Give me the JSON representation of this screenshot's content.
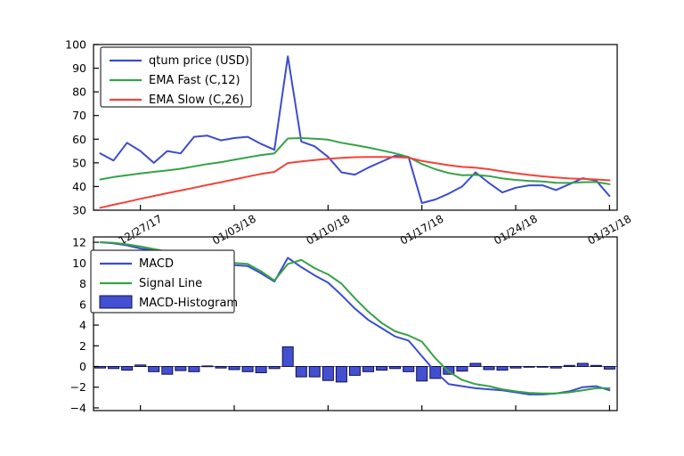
{
  "figure": {
    "background": "#ffffff",
    "axis_color": "#000000",
    "zero_line_color": "#777777"
  },
  "chart_data": [
    {
      "id": "price",
      "type": "line",
      "ylim": [
        30,
        100
      ],
      "yticks": [
        30,
        40,
        50,
        60,
        70,
        80,
        90,
        100
      ],
      "x_tick_labels": [
        "12/27/17",
        "01/03/18",
        "01/10/18",
        "01/17/18",
        "01/24/18",
        "01/31/18"
      ],
      "x_tick_indices": [
        3,
        10,
        17,
        24,
        31,
        38
      ],
      "grid": false,
      "legend_position": "upper left",
      "series": [
        {
          "name": "qtum price (USD)",
          "type": "line",
          "color": "#3c4cd0",
          "values": [
            54,
            51,
            58.5,
            55,
            50,
            55,
            54,
            61,
            61.5,
            59.5,
            60.5,
            61,
            58,
            55.5,
            95,
            59,
            57,
            52.5,
            46,
            45,
            48,
            50.5,
            53,
            52.5,
            33,
            34.5,
            37,
            40,
            46,
            41.5,
            37.5,
            39.5,
            40.5,
            40.5,
            38.5,
            41,
            43.5,
            42.5,
            36
          ]
        },
        {
          "name": "EMA Fast (C,12)",
          "type": "line",
          "color": "#35a246",
          "values": [
            43,
            44,
            44.8,
            45.5,
            46.2,
            46.8,
            47.5,
            48.5,
            49.5,
            50.3,
            51.3,
            52.3,
            53.3,
            54,
            60.3,
            60.5,
            60.2,
            59.8,
            58.5,
            57.5,
            56.5,
            55.3,
            54,
            52.5,
            49.5,
            47.3,
            45.7,
            44.8,
            44.9,
            44.4,
            43.4,
            42.8,
            42.4,
            42.1,
            41.6,
            41.5,
            41.8,
            41.9,
            41
          ]
        },
        {
          "name": "EMA Slow (C,26)",
          "type": "line",
          "color": "#f24338",
          "values": [
            31,
            32.3,
            33.5,
            34.8,
            36,
            37.2,
            38.3,
            39.5,
            40.7,
            41.8,
            43,
            44.2,
            45.3,
            46.2,
            49.9,
            50.6,
            51.2,
            51.7,
            52.1,
            52.4,
            52.5,
            52.5,
            52.4,
            52.2,
            50.8,
            49.9,
            49,
            48.3,
            48,
            47.3,
            46.4,
            45.6,
            44.9,
            44.3,
            43.8,
            43.4,
            43.2,
            43,
            42.6
          ]
        }
      ]
    },
    {
      "id": "macd",
      "type": "line+bar",
      "ylim": [
        -4.26,
        12.52
      ],
      "yticks": [
        -4,
        -2,
        0,
        2,
        4,
        6,
        8,
        10,
        12
      ],
      "x_tick_labels": [],
      "x_tick_indices": [
        3,
        10,
        17,
        24,
        31,
        38
      ],
      "grid": false,
      "legend_position": "upper left",
      "series": [
        {
          "name": "MACD",
          "type": "line",
          "color": "#3c4cd0",
          "values": [
            12,
            11.9,
            11.7,
            11.4,
            11.2,
            10.9,
            10.7,
            10.4,
            10.2,
            10.0,
            9.8,
            9.7,
            9.0,
            8.2,
            10.5,
            9.6,
            8.8,
            8.1,
            6.9,
            5.6,
            4.5,
            3.7,
            2.9,
            2.5,
            1.0,
            -0.5,
            -1.7,
            -1.9,
            -2.1,
            -2.2,
            -2.3,
            -2.5,
            -2.7,
            -2.7,
            -2.6,
            -2.4,
            -2.0,
            -1.9,
            -2.3
          ]
        },
        {
          "name": "Signal Line",
          "type": "line",
          "color": "#35a246",
          "values": [
            12,
            11.95,
            11.8,
            11.6,
            11.35,
            11.1,
            10.9,
            10.65,
            10.45,
            10.2,
            10.0,
            9.9,
            9.2,
            8.3,
            9.9,
            10.3,
            9.5,
            8.9,
            8.0,
            6.6,
            5.3,
            4.2,
            3.4,
            3.0,
            2.4,
            0.8,
            -0.5,
            -1.3,
            -1.7,
            -1.9,
            -2.2,
            -2.4,
            -2.55,
            -2.6,
            -2.6,
            -2.5,
            -2.3,
            -2.1,
            -2.1
          ]
        },
        {
          "name": "MACD-Histogram",
          "type": "bar",
          "color": "#4450d2",
          "edge_color": "#10104d",
          "values": [
            -0.15,
            -0.2,
            -0.35,
            0.15,
            -0.5,
            -0.75,
            -0.4,
            -0.5,
            0.05,
            -0.15,
            -0.3,
            -0.5,
            -0.6,
            -0.2,
            1.9,
            -1.0,
            -1.0,
            -1.35,
            -1.5,
            -0.85,
            -0.5,
            -0.35,
            -0.2,
            -0.5,
            -1.4,
            -1.15,
            -0.75,
            -0.45,
            0.3,
            -0.3,
            -0.35,
            -0.15,
            -0.05,
            -0.05,
            -0.15,
            0.1,
            0.3,
            0.1,
            -0.25
          ]
        }
      ]
    }
  ]
}
